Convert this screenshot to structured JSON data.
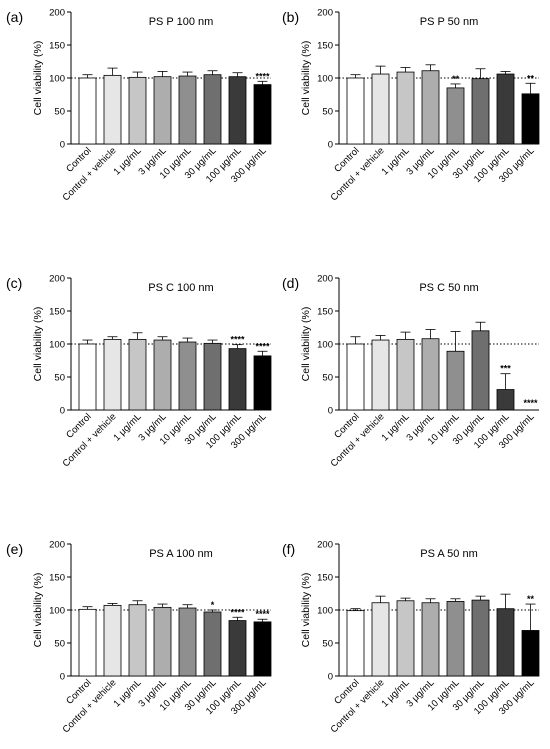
{
  "chart_data": [
    {
      "panel": "(a)",
      "type": "bar",
      "title": "PS P 100 nm",
      "ylabel": "Cell viability (%)",
      "ylim": [
        0,
        200
      ],
      "yticks": [
        "0",
        "50",
        "100",
        "150",
        "200"
      ],
      "reference_line": 100,
      "categories": [
        "Control",
        "Control + vehicle",
        "1 μg/mL",
        "3 μg/mL",
        "10 μg/mL",
        "30 μg/mL",
        "100 μg/mL",
        "300 μg/mL"
      ],
      "values": [
        100,
        104,
        101,
        102,
        103,
        105,
        102,
        90
      ],
      "errors": [
        5,
        11,
        8,
        8,
        6,
        6,
        6,
        5
      ],
      "significance": [
        "",
        "",
        "",
        "",
        "",
        "",
        "",
        "****"
      ]
    },
    {
      "panel": "(b)",
      "type": "bar",
      "title": "PS P 50 nm",
      "ylabel": "Cell viability (%)",
      "ylim": [
        0,
        200
      ],
      "yticks": [
        "0",
        "50",
        "100",
        "150",
        "200"
      ],
      "reference_line": 100,
      "categories": [
        "Control",
        "Control + vehicle",
        "1 μg/mL",
        "3 μg/mL",
        "10 μg/mL",
        "30 μg/mL",
        "100 μg/mL",
        "300 μg/mL"
      ],
      "values": [
        100,
        106,
        109,
        111,
        85,
        99,
        106,
        76
      ],
      "errors": [
        5,
        12,
        7,
        9,
        6,
        15,
        4,
        16
      ],
      "significance": [
        "",
        "",
        "",
        "",
        "**",
        "",
        "",
        "**"
      ]
    },
    {
      "panel": "(c)",
      "type": "bar",
      "title": "PS C 100 nm",
      "ylabel": "Cell viability (%)",
      "ylim": [
        0,
        200
      ],
      "yticks": [
        "0",
        "50",
        "100",
        "150",
        "200"
      ],
      "reference_line": 100,
      "categories": [
        "Control",
        "Control + vehicle",
        "1 μg/mL",
        "3 μg/mL",
        "10 μg/mL",
        "30 μg/mL",
        "100 μg/mL",
        "300 μg/mL"
      ],
      "values": [
        100,
        107,
        107,
        106,
        103,
        101,
        93,
        82
      ],
      "errors": [
        6,
        4,
        10,
        5,
        6,
        5,
        6,
        7
      ],
      "significance": [
        "",
        "",
        "",
        "",
        "",
        "",
        "****",
        "****"
      ]
    },
    {
      "panel": "(d)",
      "type": "bar",
      "title": "PS C 50 nm",
      "ylabel": "Cell viability (%)",
      "ylim": [
        0,
        200
      ],
      "yticks": [
        "0",
        "50",
        "100",
        "150",
        "200"
      ],
      "reference_line": 100,
      "categories": [
        "Control",
        "Control + vehicle",
        "1 μg/mL",
        "3 μg/mL",
        "10 μg/mL",
        "30 μg/mL",
        "100 μg/mL",
        "300 μg/mL"
      ],
      "values": [
        100,
        106,
        107,
        108,
        89,
        120,
        31,
        0
      ],
      "errors": [
        11,
        7,
        11,
        14,
        30,
        13,
        24,
        0
      ],
      "significance": [
        "",
        "",
        "",
        "",
        "",
        "",
        "***",
        "****"
      ]
    },
    {
      "panel": "(e)",
      "type": "bar",
      "title": "PS A 100 nm",
      "ylabel": "Cell viability (%)",
      "ylim": [
        0,
        200
      ],
      "yticks": [
        "0",
        "50",
        "100",
        "150",
        "200"
      ],
      "reference_line": 100,
      "categories": [
        "Control",
        "Control + vehicle",
        "1 μg/mL",
        "3 μg/mL",
        "10 μg/mL",
        "30 μg/mL",
        "100 μg/mL",
        "300 μg/mL"
      ],
      "values": [
        101,
        107,
        108,
        104,
        103,
        97,
        84,
        82
      ],
      "errors": [
        4,
        3,
        6,
        5,
        5,
        3,
        5,
        4
      ],
      "significance": [
        "",
        "",
        "",
        "",
        "",
        "*",
        "****",
        "****"
      ]
    },
    {
      "panel": "(f)",
      "type": "bar",
      "title": "PS A 50 nm",
      "ylabel": "Cell viability (%)",
      "ylim": [
        0,
        200
      ],
      "yticks": [
        "0",
        "50",
        "100",
        "150",
        "200"
      ],
      "reference_line": 100,
      "categories": [
        "Control",
        "Control + vehicle",
        "1 μg/mL",
        "3 μg/mL",
        "10 μg/mL",
        "30 μg/mL",
        "100 μg/mL",
        "300 μg/mL"
      ],
      "values": [
        99,
        111,
        114,
        111,
        113,
        115,
        102,
        69
      ],
      "errors": [
        3,
        10,
        4,
        6,
        4,
        6,
        22,
        40
      ],
      "significance": [
        "",
        "",
        "",
        "",
        "",
        "",
        "",
        "**"
      ]
    }
  ],
  "colors": {
    "bar_fills": [
      "#ffffff",
      "#e6e6e6",
      "#c6c6c6",
      "#adadad",
      "#8f8f8f",
      "#6f6f6f",
      "#3a3a3a",
      "#000000"
    ],
    "axis": "#000000"
  }
}
